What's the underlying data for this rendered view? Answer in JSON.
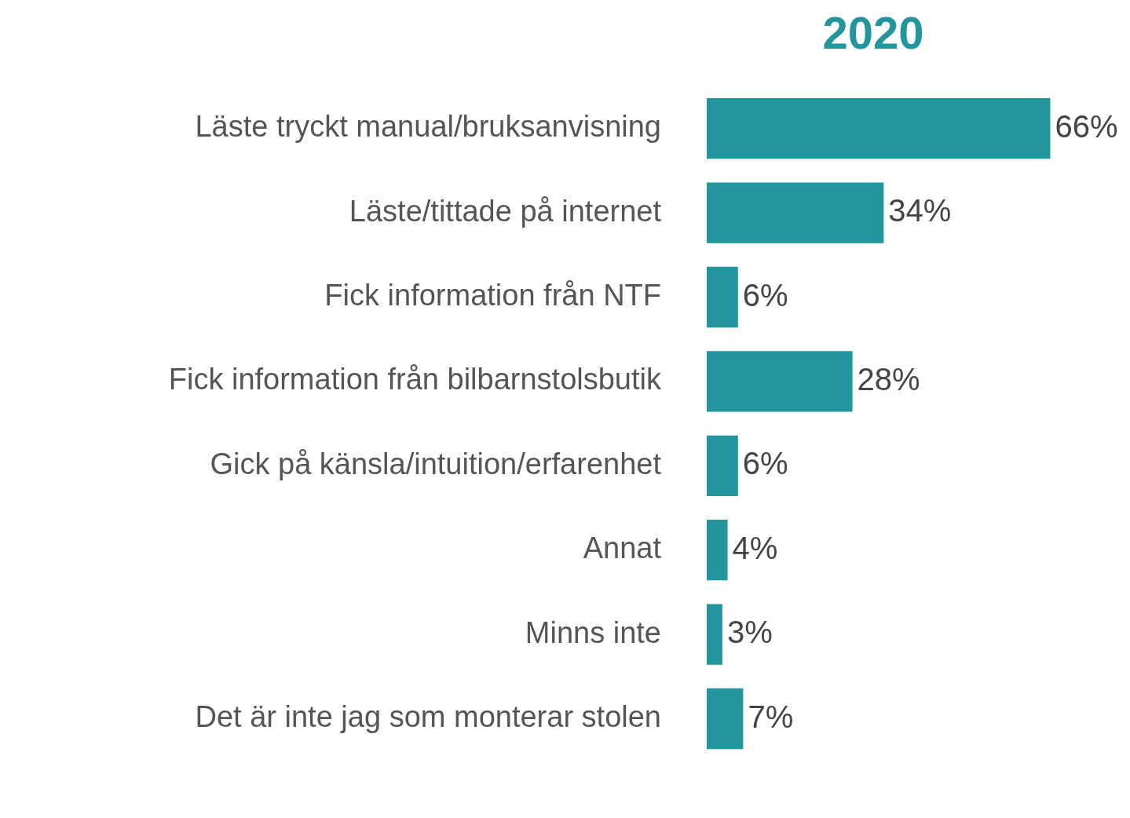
{
  "chart_data": {
    "type": "bar",
    "orientation": "horizontal",
    "title": "2020",
    "categories": [
      "Läste tryckt manual/bruksanvisning",
      "Läste/tittade på internet",
      "Fick information från NTF",
      "Fick information från bilbarnstolsbutik",
      "Gick på känsla/intuition/erfarenhet",
      "Annat",
      "Minns inte",
      "Det är inte jag som monterar stolen"
    ],
    "values": [
      66,
      34,
      6,
      28,
      6,
      4,
      3,
      7
    ],
    "value_labels": [
      "66%",
      "34%",
      "6%",
      "28%",
      "6%",
      "4%",
      "3%",
      "7%"
    ],
    "color": "#23959c"
  }
}
